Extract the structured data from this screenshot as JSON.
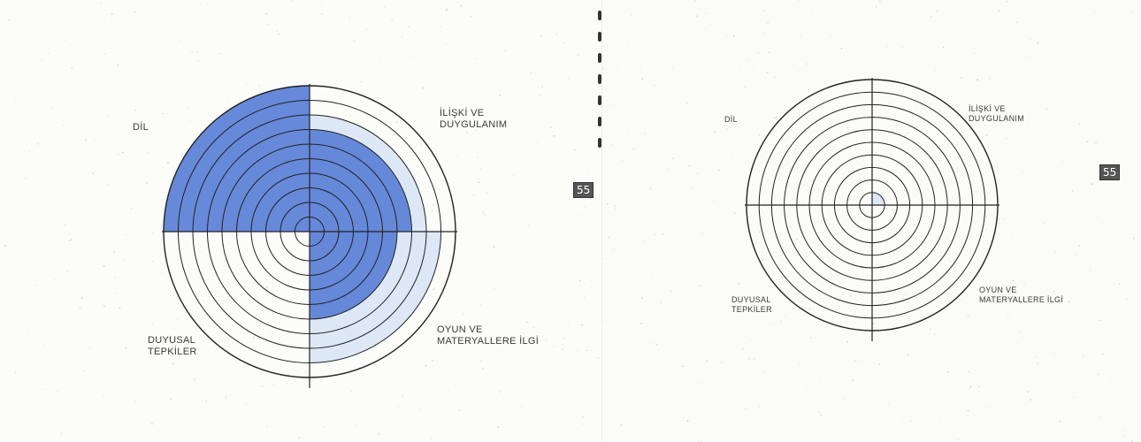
{
  "page_badge": "55",
  "colors": {
    "heavy_fill": "#5a7fd6",
    "light_fill": "#dde8f6",
    "stroke": "#222222"
  },
  "panels": [
    {
      "labels": {
        "dil": "DİL",
        "iliski": "İLİŞKİ VE\nDUYGULANIM",
        "duyusal": "DUYUSAL\nTEPKİLER",
        "oyun": "OYUN VE\nMATERYALLERE İLGİ"
      },
      "rings": 10,
      "shading": {
        "top_left": {
          "heavy": 10,
          "light": 0
        },
        "top_right": {
          "heavy": 7,
          "light": 8
        },
        "bottom_right": {
          "heavy": 6,
          "light": 9
        },
        "bottom_left": {
          "heavy": 0,
          "light": 0
        }
      }
    },
    {
      "labels": {
        "dil": "DİL",
        "iliski": "İLİŞKİ VE\nDUYGULANIM",
        "duyusal": "DUYUSAL\nTEPKİLER",
        "oyun": "OYUN VE\nMATERYALLERE İLGİ"
      },
      "rings": 10,
      "shading": {
        "top_left": {
          "heavy": 0,
          "light": 0
        },
        "top_right": {
          "heavy": 0,
          "light": 1
        },
        "bottom_right": {
          "heavy": 0,
          "light": 0
        },
        "bottom_left": {
          "heavy": 0,
          "light": 0
        }
      }
    }
  ]
}
